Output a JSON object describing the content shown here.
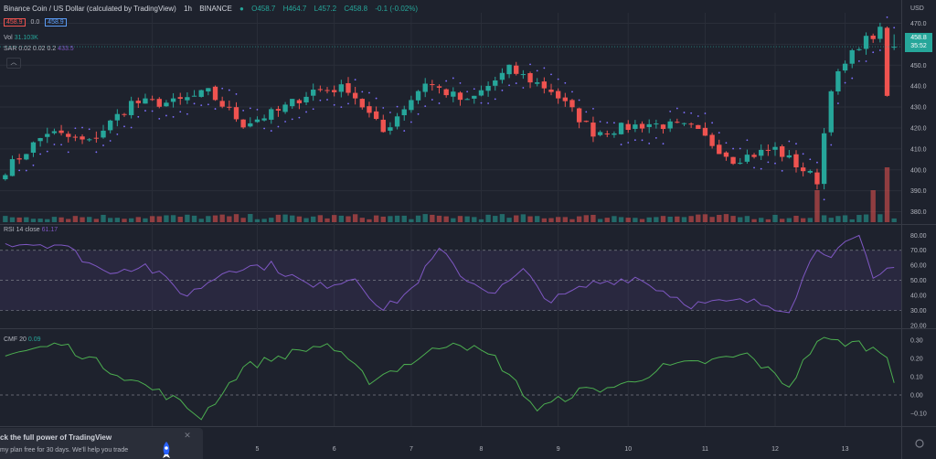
{
  "header": {
    "symbol_title": "Binance Coin / US Dollar (calculated by TradingView)",
    "interval": "1h",
    "exchange": "BINANCE",
    "open": "O458.7",
    "high": "H464.7",
    "low": "L457.2",
    "close": "C458.8",
    "change": "-0.1 (-0.02%)",
    "bid": "458.9",
    "spread": "0.0",
    "ask": "458.9"
  },
  "legends": {
    "vol_label": "Vol",
    "vol_value": "31.103K",
    "sar_label": "SAR 0.02 0.02 0.2",
    "sar_value": "433.5",
    "rsi_label": "RSI 14 close",
    "rsi_value": "61.17",
    "cmf_label": "CMF 20",
    "cmf_value": "0.09"
  },
  "price_axis": {
    "currency": "USD",
    "last_price": "458.8",
    "countdown": "35:52"
  },
  "promo": {
    "title": "ck the full power of TradingView",
    "subtitle": "my plan free for 30 days. We'll help you trade"
  },
  "colors": {
    "background": "#1e222d",
    "up": "#26a69a",
    "down": "#ef5350",
    "sar": "#7e6fff",
    "rsi": "#7e57c2",
    "cmf": "#4caf50",
    "grid": "#2a2e39"
  },
  "chart_data": [
    {
      "type": "candlestick",
      "pane": "price",
      "ylim": [
        375,
        475
      ],
      "yticks": [
        380,
        390,
        400,
        410,
        420,
        430,
        440,
        450,
        460,
        470
      ],
      "xticks": [
        "4",
        "5",
        "6",
        "7",
        "8",
        "9",
        "10",
        "11",
        "12",
        "13"
      ],
      "xtick_bar_index": [
        21,
        36,
        47,
        58,
        68,
        79,
        89,
        100,
        110,
        120
      ],
      "bar_close_path": [
        [
          0,
          400
        ],
        [
          6,
          418
        ],
        [
          12,
          413
        ],
        [
          18,
          432
        ],
        [
          24,
          432
        ],
        [
          29,
          437
        ],
        [
          34,
          422
        ],
        [
          39,
          428
        ],
        [
          44,
          438
        ],
        [
          49,
          439
        ],
        [
          54,
          418
        ],
        [
          60,
          442
        ],
        [
          66,
          432
        ],
        [
          72,
          448
        ],
        [
          78,
          438
        ],
        [
          84,
          418
        ],
        [
          92,
          422
        ],
        [
          98,
          420
        ],
        [
          104,
          405
        ],
        [
          110,
          410
        ],
        [
          116,
          395
        ],
        [
          118,
          440
        ],
        [
          122,
          460
        ],
        [
          125,
          466
        ],
        [
          126,
          435
        ],
        [
          127,
          458.8
        ]
      ],
      "last_bar": {
        "open": 458.7,
        "high": 464.7,
        "low": 457.2,
        "close": 458.8
      },
      "bars": 128
    },
    {
      "type": "bar",
      "pane": "volume",
      "series": [
        {
          "name": "Vol",
          "last": 31103
        }
      ],
      "note_peaks": [
        [
          116,
          "high"
        ],
        [
          124,
          "high"
        ],
        [
          126,
          "very high"
        ]
      ]
    },
    {
      "type": "scatter",
      "pane": "price",
      "series": [
        {
          "name": "SAR",
          "last": 433.5
        }
      ]
    },
    {
      "type": "line",
      "pane": "rsi",
      "ylim": [
        20,
        82
      ],
      "yticks": [
        20,
        30,
        40,
        50,
        60,
        70,
        80
      ],
      "band": [
        30,
        70
      ],
      "series": [
        {
          "name": "RSI 14 close",
          "last": 61.17
        }
      ],
      "path": [
        [
          0,
          75
        ],
        [
          8,
          74
        ],
        [
          14,
          56
        ],
        [
          20,
          60
        ],
        [
          26,
          40
        ],
        [
          32,
          58
        ],
        [
          38,
          60
        ],
        [
          44,
          45
        ],
        [
          50,
          52
        ],
        [
          54,
          30
        ],
        [
          58,
          44
        ],
        [
          62,
          70
        ],
        [
          66,
          50
        ],
        [
          70,
          42
        ],
        [
          74,
          56
        ],
        [
          78,
          36
        ],
        [
          84,
          48
        ],
        [
          90,
          52
        ],
        [
          98,
          34
        ],
        [
          106,
          36
        ],
        [
          112,
          31
        ],
        [
          116,
          72
        ],
        [
          118,
          68
        ],
        [
          122,
          78
        ],
        [
          124,
          50
        ],
        [
          127,
          61.17
        ]
      ]
    },
    {
      "type": "line",
      "pane": "cmf",
      "ylim": [
        -0.15,
        0.35
      ],
      "yticks": [
        -0.1,
        0.0,
        0.1,
        0.2,
        0.3
      ],
      "series": [
        {
          "name": "CMF 20",
          "last": 0.09
        }
      ],
      "path": [
        [
          0,
          0.22
        ],
        [
          8,
          0.28
        ],
        [
          16,
          0.12
        ],
        [
          24,
          -0.02
        ],
        [
          28,
          -0.12
        ],
        [
          34,
          0.15
        ],
        [
          40,
          0.22
        ],
        [
          46,
          0.28
        ],
        [
          52,
          0.08
        ],
        [
          58,
          0.18
        ],
        [
          64,
          0.3
        ],
        [
          70,
          0.2
        ],
        [
          76,
          -0.08
        ],
        [
          82,
          0.02
        ],
        [
          88,
          0.05
        ],
        [
          94,
          0.15
        ],
        [
          100,
          0.18
        ],
        [
          106,
          0.22
        ],
        [
          112,
          0.05
        ],
        [
          116,
          0.3
        ],
        [
          122,
          0.28
        ],
        [
          126,
          0.22
        ],
        [
          127,
          0.09
        ]
      ]
    }
  ]
}
